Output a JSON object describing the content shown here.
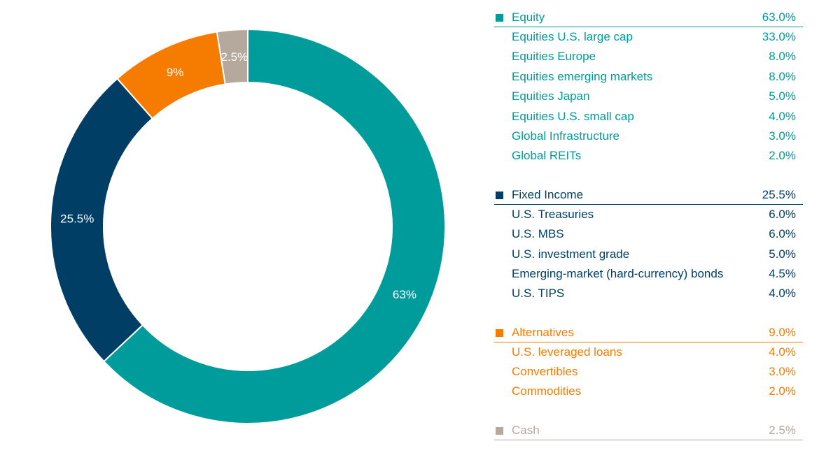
{
  "chart_data": {
    "type": "pie",
    "style": "donut",
    "slices": [
      {
        "label": "63%",
        "value": 63.0,
        "color": "#009B9B"
      },
      {
        "label": "25.5%",
        "value": 25.5,
        "color": "#003E66"
      },
      {
        "label": "9%",
        "value": 9.0,
        "color": "#F57C00"
      },
      {
        "label": "2.5%",
        "value": 2.5,
        "color": "#B5A89C"
      }
    ],
    "legend": {
      "placement": "right",
      "groups": [
        {
          "name": "Equity",
          "value": "63.0%",
          "color": "#009B9B",
          "items": [
            {
              "name": "Equities U.S. large cap",
              "value": "33.0%"
            },
            {
              "name": "Equities Europe",
              "value": "8.0%"
            },
            {
              "name": "Equities emerging markets",
              "value": "8.0%"
            },
            {
              "name": "Equities Japan",
              "value": "5.0%"
            },
            {
              "name": "Equities U.S. small cap",
              "value": "4.0%"
            },
            {
              "name": "Global Infrastructure",
              "value": "3.0%"
            },
            {
              "name": "Global REITs",
              "value": "2.0%"
            }
          ]
        },
        {
          "name": "Fixed Income",
          "value": "25.5%",
          "color": "#003E66",
          "items": [
            {
              "name": "U.S. Treasuries",
              "value": "6.0%"
            },
            {
              "name": "U.S. MBS",
              "value": "6.0%"
            },
            {
              "name": "U.S. investment grade",
              "value": "5.0%"
            },
            {
              "name": "Emerging-market (hard-currency) bonds",
              "value": "4.5%"
            },
            {
              "name": "U.S. TIPS",
              "value": "4.0%"
            }
          ]
        },
        {
          "name": "Alternatives",
          "value": "9.0%",
          "color": "#F57C00",
          "items": [
            {
              "name": "U.S. leveraged loans",
              "value": "4.0%"
            },
            {
              "name": "Convertibles",
              "value": "3.0%"
            },
            {
              "name": "Commodities",
              "value": "2.0%"
            }
          ]
        },
        {
          "name": "Cash",
          "value": "2.5%",
          "color": "#B5A89C",
          "items": []
        }
      ]
    }
  }
}
